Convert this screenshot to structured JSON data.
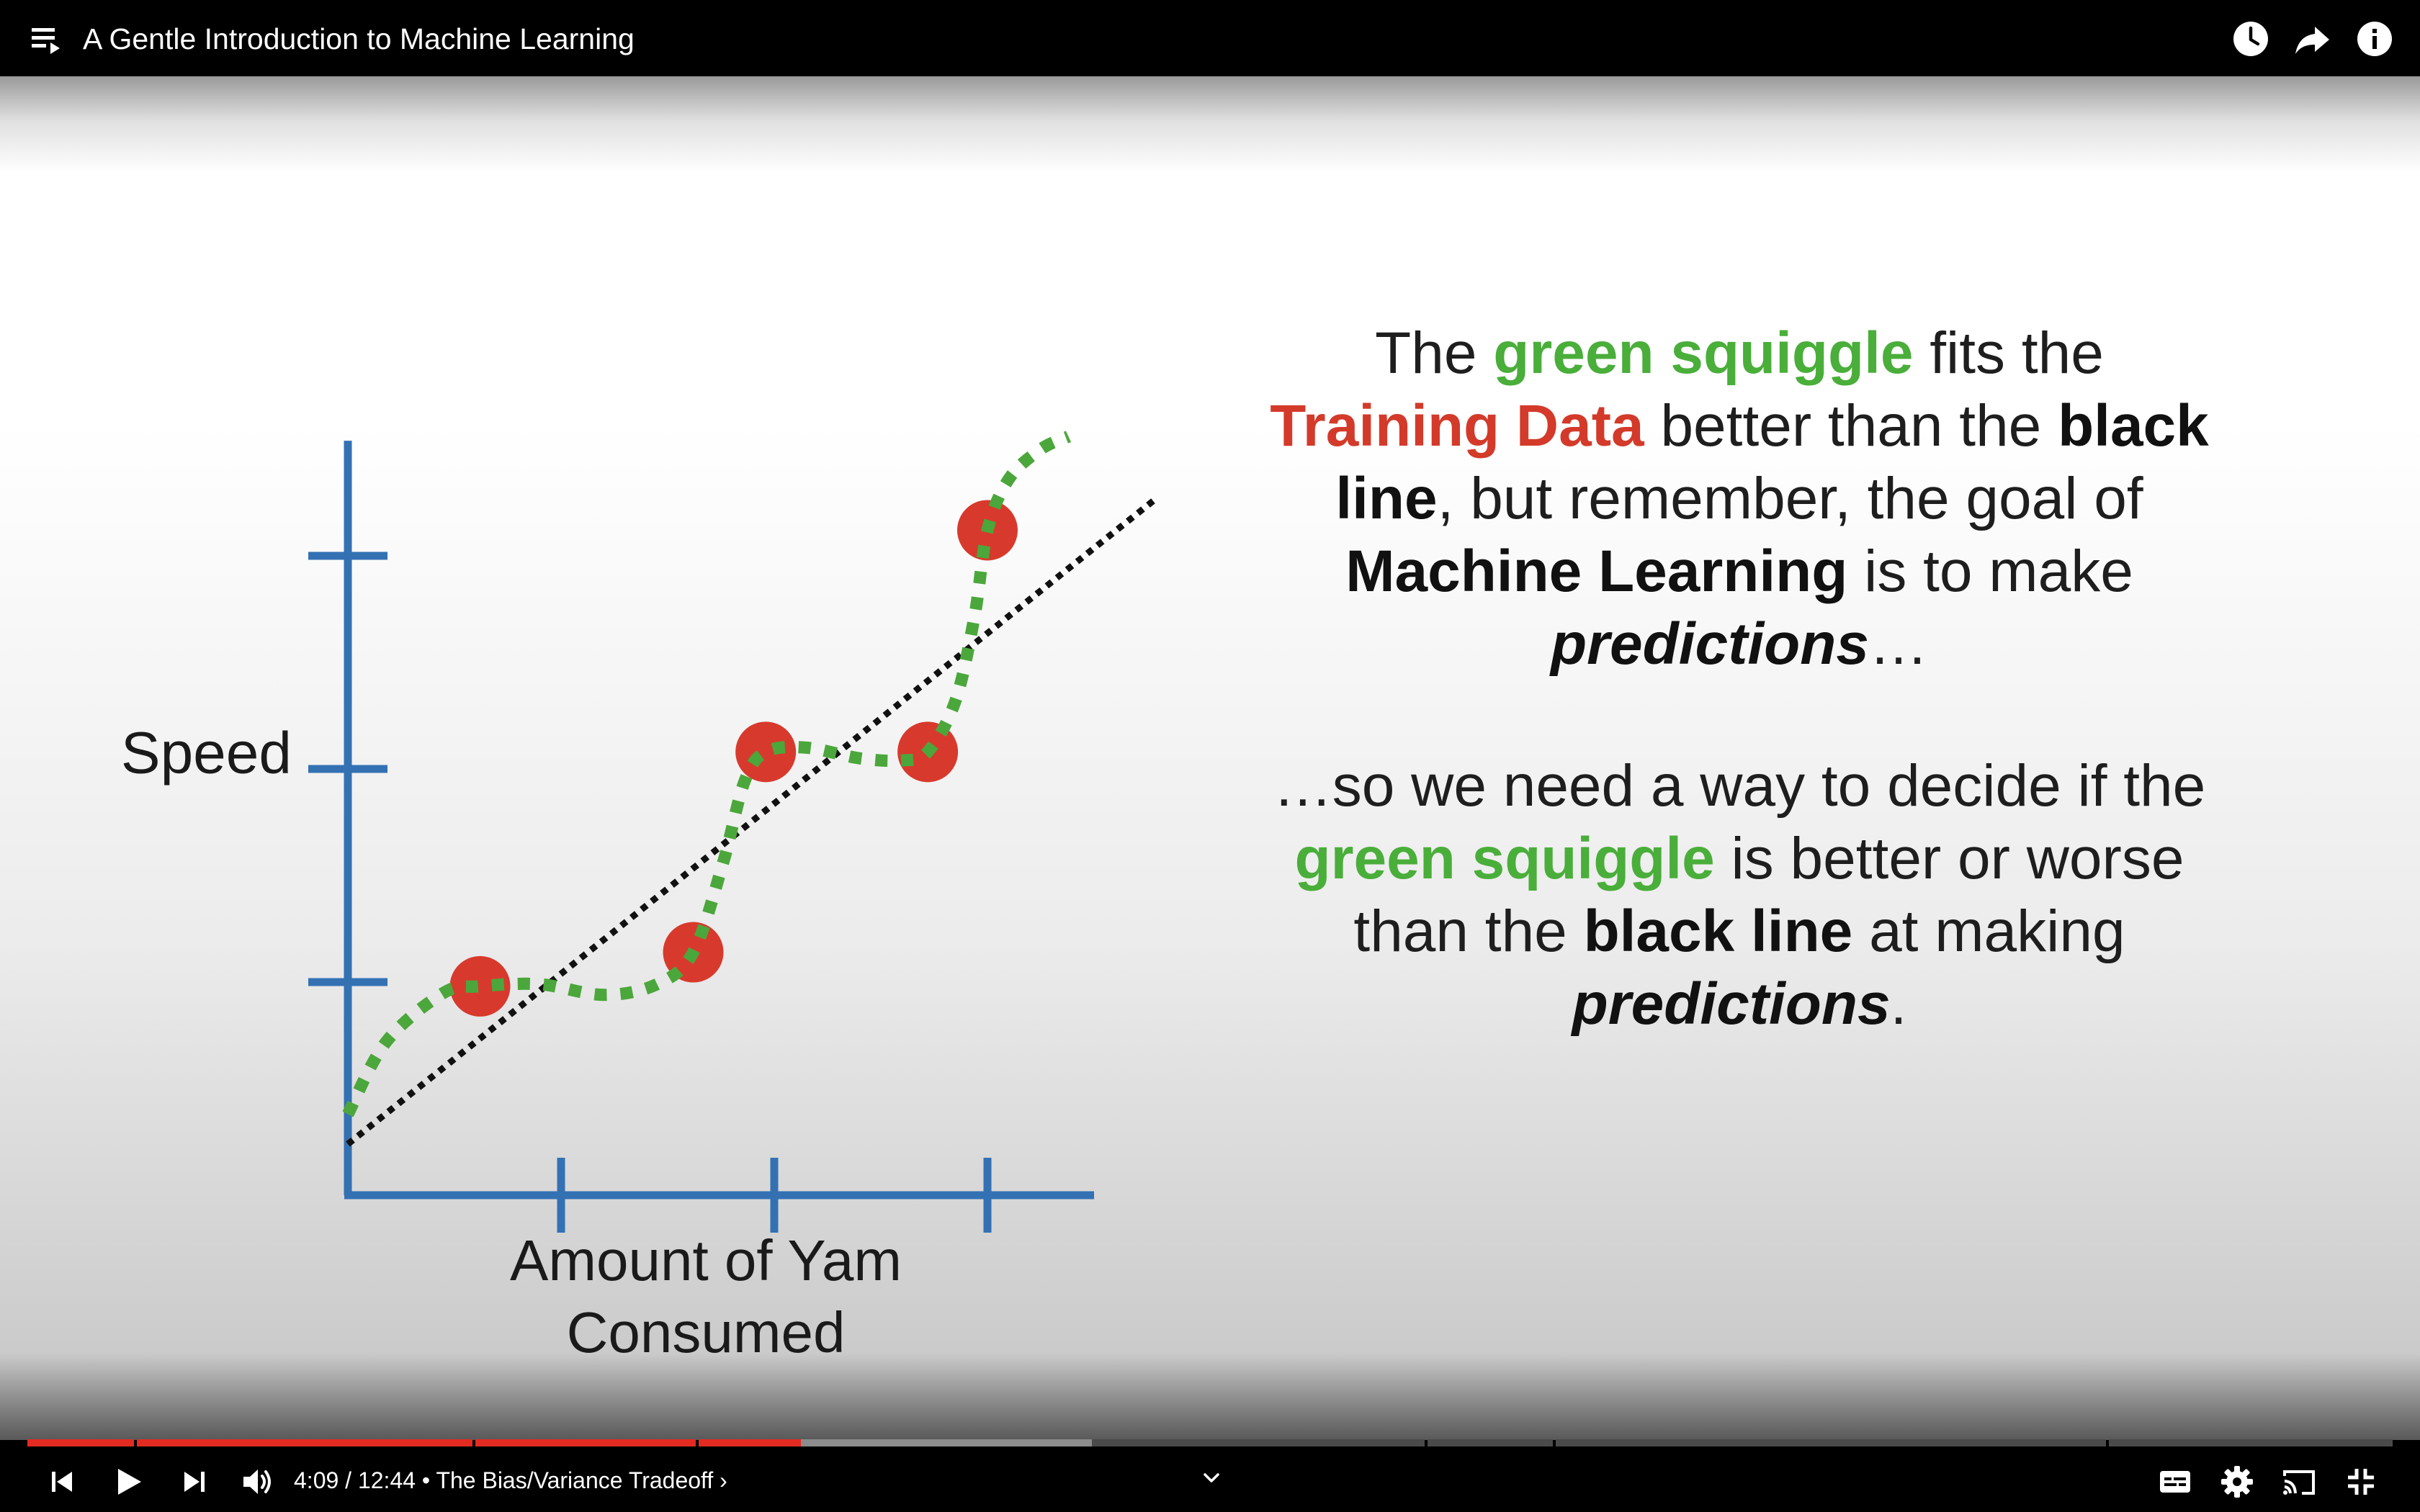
{
  "header": {
    "title": "A Gentle Introduction to Machine Learning",
    "icons": [
      "playlist-icon",
      "watch-later-icon",
      "share-icon",
      "info-icon"
    ]
  },
  "slide": {
    "para1": {
      "t1": "The ",
      "green1": "green squiggle",
      "t2": " fits the ",
      "red1": "Training Data",
      "t3": " better than the ",
      "bold1": "black line",
      "t4": ", but remember, the goal of ",
      "bold2": "Machine Learning",
      "t5": " is to make ",
      "bi1": "predictions",
      "t6": "…"
    },
    "para2": {
      "t1": "…so we need a way to decide if the ",
      "green1": "green squiggle",
      "t2": " is better or worse than the ",
      "bold1": "black line",
      "t3": " at making ",
      "bi1": "predictions",
      "t4": "."
    }
  },
  "chart_data": {
    "type": "scatter",
    "xlabel": "Amount of Yam Consumed",
    "ylabel": "Speed",
    "xlim": [
      0,
      3.5
    ],
    "ylim": [
      0,
      3.0
    ],
    "xticks": [
      1,
      2,
      3
    ],
    "yticks": [
      1,
      2,
      3
    ],
    "points": [
      {
        "x": 0.62,
        "y": 0.98
      },
      {
        "x": 1.62,
        "y": 1.14
      },
      {
        "x": 1.96,
        "y": 2.08
      },
      {
        "x": 2.72,
        "y": 2.08
      },
      {
        "x": 3.0,
        "y": 3.12
      }
    ],
    "black_line": [
      {
        "x": 0.0,
        "y": 0.24
      },
      {
        "x": 3.78,
        "y": 3.26
      }
    ],
    "green_squiggle": [
      {
        "x": 0.0,
        "y": 0.38
      },
      {
        "x": 0.18,
        "y": 0.72
      },
      {
        "x": 0.45,
        "y": 0.95
      },
      {
        "x": 0.62,
        "y": 0.98
      },
      {
        "x": 0.9,
        "y": 0.99
      },
      {
        "x": 1.2,
        "y": 0.94
      },
      {
        "x": 1.45,
        "y": 0.99
      },
      {
        "x": 1.62,
        "y": 1.14
      },
      {
        "x": 1.76,
        "y": 1.56
      },
      {
        "x": 1.86,
        "y": 1.94
      },
      {
        "x": 1.96,
        "y": 2.08
      },
      {
        "x": 2.15,
        "y": 2.1
      },
      {
        "x": 2.4,
        "y": 2.05
      },
      {
        "x": 2.6,
        "y": 2.04
      },
      {
        "x": 2.72,
        "y": 2.08
      },
      {
        "x": 2.85,
        "y": 2.32
      },
      {
        "x": 2.94,
        "y": 2.72
      },
      {
        "x": 3.0,
        "y": 3.12
      },
      {
        "x": 3.1,
        "y": 3.36
      },
      {
        "x": 3.25,
        "y": 3.5
      },
      {
        "x": 3.38,
        "y": 3.56
      }
    ],
    "colors": {
      "axis": "#3371b3",
      "points": "#d73a2c",
      "squiggle": "#4ba73b",
      "line": "#111111"
    }
  },
  "controls": {
    "current_time": "4:09",
    "total_time": "12:44",
    "separator": " / ",
    "chapter_sep": " • ",
    "chapter": "The Bias/Variance Tradeoff ›",
    "played_fraction": 0.327,
    "buffered_fraction": 0.45,
    "icons": [
      "previous-icon",
      "play-icon",
      "next-icon",
      "volume-icon",
      "chevron-down-icon",
      "subtitles-icon",
      "settings-icon",
      "cast-icon",
      "exit-fullscreen-icon"
    ]
  }
}
